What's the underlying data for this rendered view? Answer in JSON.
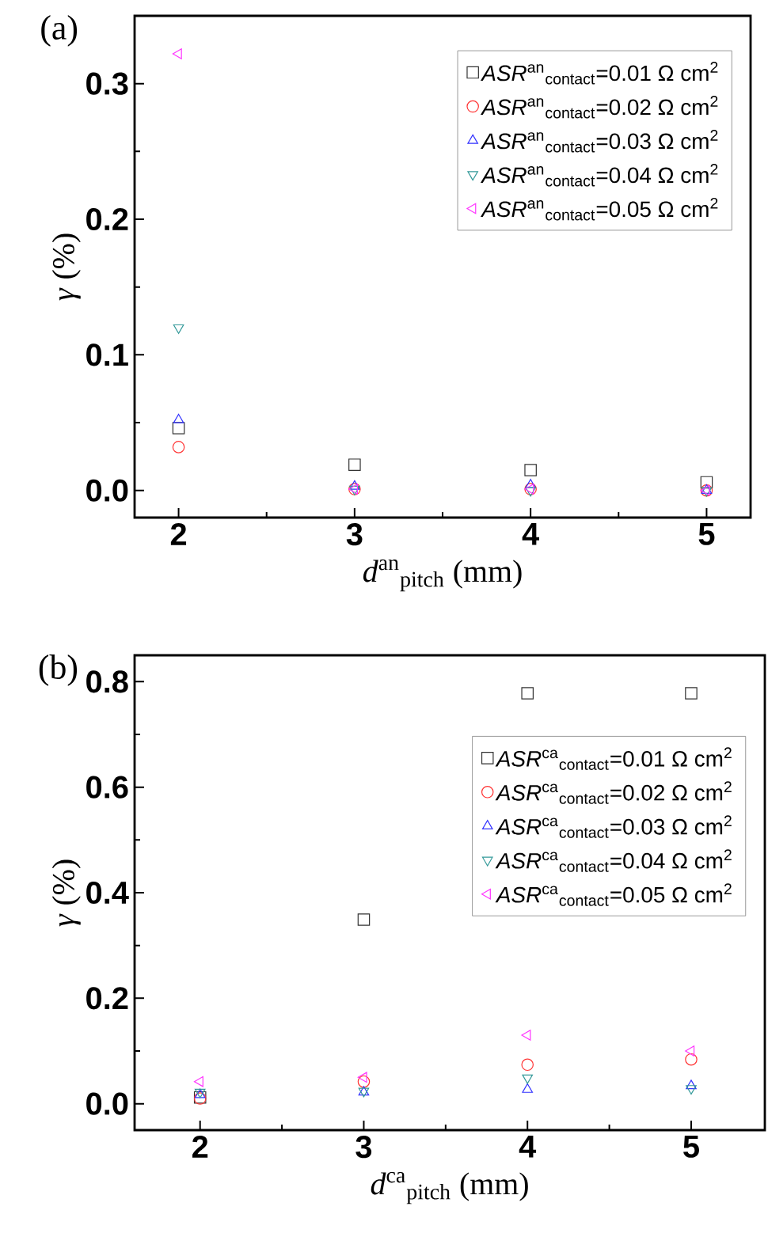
{
  "chart_data": [
    {
      "type": "scatter",
      "title": "(a)",
      "xlabel": "*d*$^{an}$$_{pitch}$ (mm)",
      "ylabel": "*γ* (%)",
      "x": [
        2,
        3,
        4,
        5
      ],
      "xlim": [
        1.75,
        5.25
      ],
      "ylim": [
        -0.02,
        0.35
      ],
      "xticks": [
        2,
        3,
        4,
        5
      ],
      "yticks": [
        {
          "value": 0,
          "label": "0.0"
        },
        0.1,
        0.2,
        0.3
      ],
      "legend": "top right",
      "grid": false,
      "series": [
        {
          "name": "*ASR*$^{an}$$_{contact}$=0.01 Ω cm$^{2}$",
          "color": "#333333",
          "marker": "square",
          "values": [
            0.046,
            0.019,
            0.015,
            0.006
          ]
        },
        {
          "name": "*ASR*$^{an}$$_{contact}$=0.02 Ω cm$^{2}$",
          "color": "#ff3333",
          "marker": "circle",
          "values": [
            0.032,
            0.001,
            0.001,
            0.0
          ]
        },
        {
          "name": "*ASR*$^{an}$$_{contact}$=0.03 Ω cm$^{2}$",
          "color": "#3333ff",
          "marker": "triangle",
          "values": [
            0.052,
            0.003,
            0.004,
            0.0
          ]
        },
        {
          "name": "*ASR*$^{an}$$_{contact}$=0.04 Ω cm$^{2}$",
          "color": "#339999",
          "marker": "triangle-down",
          "values": [
            0.12,
            0.001,
            0.0,
            0.0
          ]
        },
        {
          "name": "*ASR*$^{an}$$_{contact}$=0.05 Ω cm$^{2}$",
          "color": "#ff33ff",
          "marker": "triangle-left",
          "values": [
            0.322,
            0.001,
            0.001,
            0.0
          ]
        }
      ]
    },
    {
      "type": "scatter",
      "title": "(b)",
      "xlabel": "*d*$^{ca}$$_{pitch}$ (mm)",
      "ylabel": "*γ* (%)",
      "x": [
        2,
        3,
        4,
        5
      ],
      "xlim": [
        1.6,
        5.45
      ],
      "ylim": [
        -0.05,
        0.85
      ],
      "xticks": [
        2,
        3,
        4,
        5
      ],
      "yticks": [
        {
          "value": 0,
          "label": "0.0"
        },
        0.2,
        0.4,
        0.6,
        0.8
      ],
      "legend": "top right",
      "grid": false,
      "series": [
        {
          "name": "*ASR*$^{ca}$$_{contact}$=0.01 Ω cm$^{2}$",
          "color": "#333333",
          "marker": "square",
          "values": [
            0.012,
            0.349,
            0.778,
            0.778
          ]
        },
        {
          "name": "*ASR*$^{ca}$$_{contact}$=0.02 Ω cm$^{2}$",
          "color": "#ff3333",
          "marker": "circle",
          "values": [
            0.01,
            0.042,
            0.074,
            0.084
          ]
        },
        {
          "name": "*ASR*$^{ca}$$_{contact}$=0.03 Ω cm$^{2}$",
          "color": "#3333ff",
          "marker": "triangle",
          "values": [
            0.017,
            0.022,
            0.027,
            0.034
          ]
        },
        {
          "name": "*ASR*$^{ca}$$_{contact}$=0.04 Ω cm$^{2}$",
          "color": "#339999",
          "marker": "triangle-down",
          "values": [
            0.022,
            0.024,
            0.049,
            0.029
          ]
        },
        {
          "name": "*ASR*$^{ca}$$_{contact}$=0.05 Ω cm$^{2}$",
          "color": "#ff33ff",
          "marker": "triangle-left",
          "values": [
            0.042,
            0.05,
            0.13,
            0.1
          ]
        }
      ]
    }
  ]
}
